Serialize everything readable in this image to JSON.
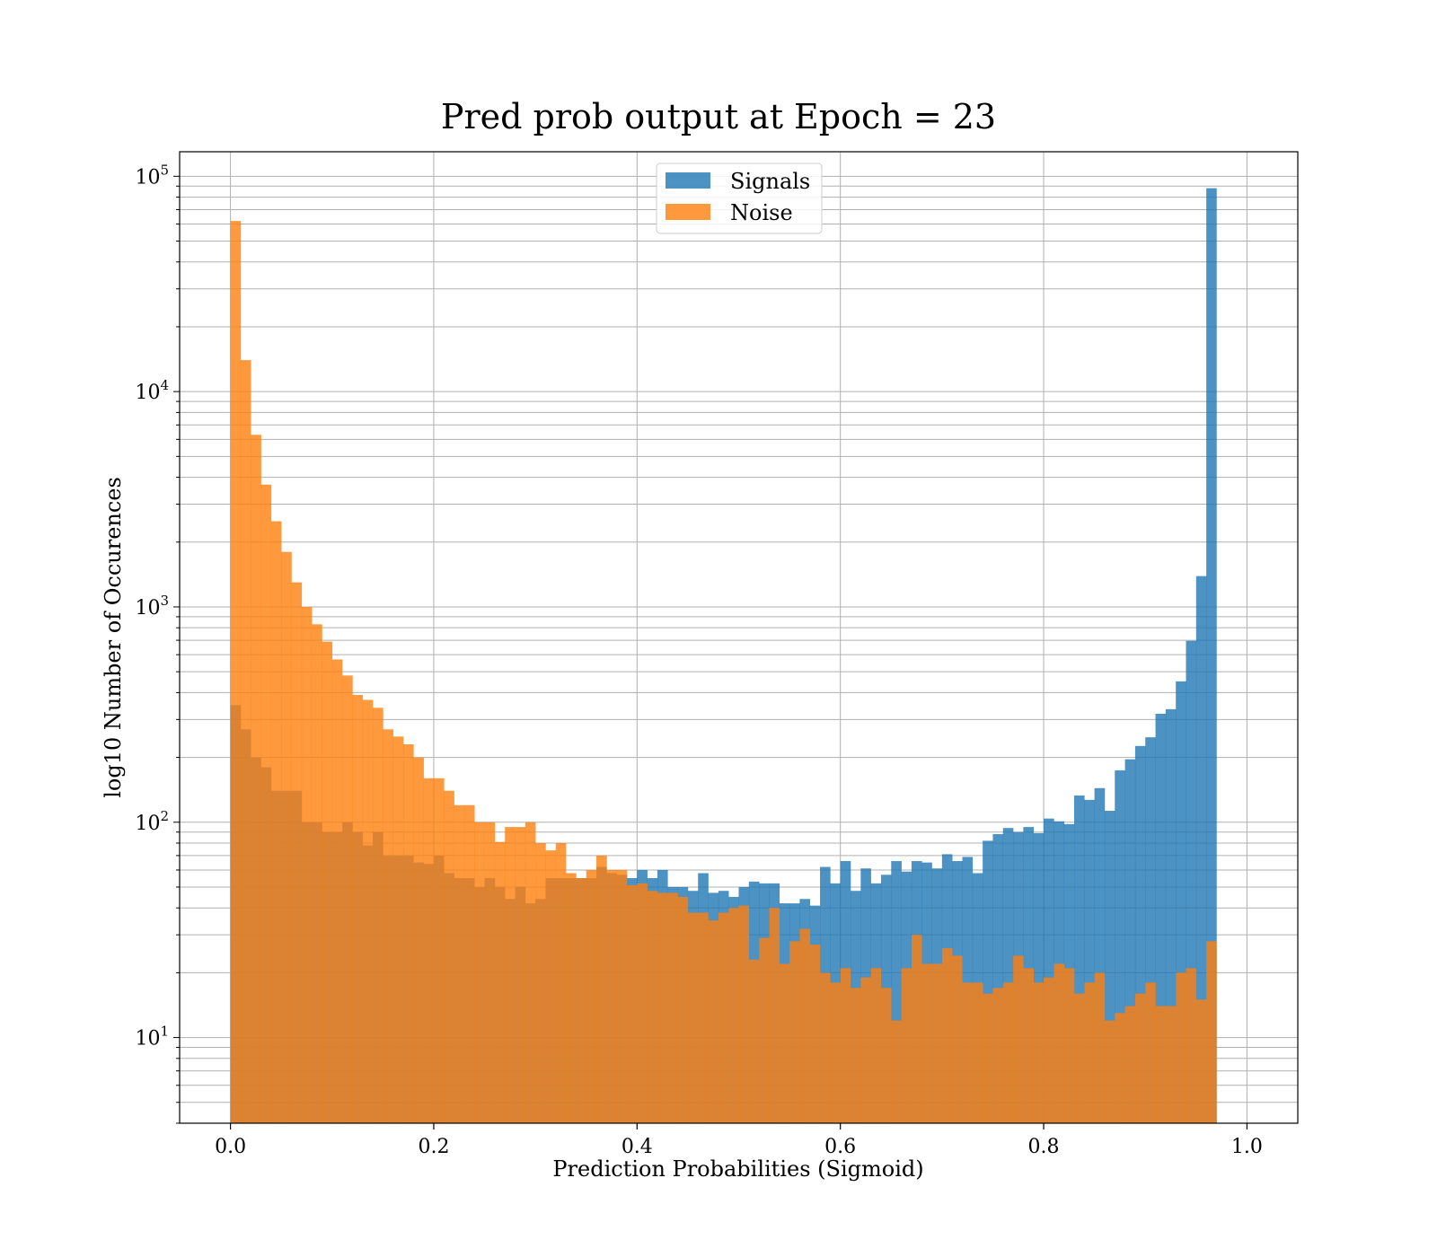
{
  "chart_data": {
    "type": "bar",
    "subtype": "overlaid-histogram",
    "title": "Pred prob output at Epoch = 23",
    "xlabel": "Prediction Probabilities (Sigmoid)",
    "ylabel": "log10 Number of Occurences",
    "xlim": [
      -0.05,
      1.05
    ],
    "ylim": [
      4,
      130000
    ],
    "yscale": "log",
    "grid": true,
    "legend_position": "top-center",
    "bins": {
      "start": 0.0,
      "end": 1.0,
      "count": 100
    },
    "xticks": [
      "0.0",
      "0.2",
      "0.4",
      "0.6",
      "0.8",
      "1.0"
    ],
    "xtick_values": [
      0.0,
      0.2,
      0.4,
      0.6,
      0.8,
      1.0
    ],
    "ytick_values": [
      10,
      100,
      1000,
      10000,
      100000
    ],
    "ytick_labels": [
      {
        "base": "10",
        "exp": "1"
      },
      {
        "base": "10",
        "exp": "2"
      },
      {
        "base": "10",
        "exp": "3"
      },
      {
        "base": "10",
        "exp": "4"
      },
      {
        "base": "10",
        "exp": "5"
      }
    ],
    "series": [
      {
        "name": "Signals",
        "color": "#1f77b4",
        "opacity": 0.8,
        "values": [
          350,
          270,
          200,
          180,
          140,
          140,
          140,
          100,
          100,
          90,
          90,
          100,
          90,
          78,
          90,
          70,
          70,
          70,
          65,
          64,
          70,
          58,
          55,
          55,
          50,
          55,
          50,
          44,
          50,
          42,
          44,
          55,
          55,
          55,
          55,
          55,
          62,
          58,
          57,
          55,
          60,
          55,
          60,
          50,
          50,
          48,
          58,
          47,
          48,
          45,
          50,
          53,
          52,
          52,
          42,
          42,
          44,
          41,
          62,
          52,
          66,
          48,
          61,
          52,
          57,
          66,
          59,
          66,
          65,
          61,
          71,
          66,
          69,
          58,
          82,
          88,
          94,
          90,
          95,
          89,
          104,
          101,
          98,
          133,
          127,
          144,
          113,
          174,
          196,
          226,
          248,
          319,
          335,
          451,
          696,
          1390,
          88000,
          0,
          0,
          0
        ]
      },
      {
        "name": "Noise",
        "color": "#ff7f0e",
        "opacity": 0.8,
        "values": [
          62000,
          14000,
          6300,
          3700,
          2500,
          1800,
          1300,
          1000,
          830,
          690,
          570,
          480,
          390,
          370,
          340,
          270,
          250,
          230,
          200,
          160,
          160,
          140,
          120,
          120,
          100,
          100,
          81,
          95,
          95,
          100,
          80,
          74,
          80,
          58,
          55,
          60,
          70,
          60,
          60,
          51,
          52,
          48,
          47,
          47,
          45,
          38,
          38,
          35,
          38,
          40,
          41,
          23,
          29,
          40,
          22,
          28,
          32,
          27,
          20,
          18,
          21,
          17,
          19,
          21,
          17,
          12,
          21,
          30,
          22,
          22,
          26,
          24,
          18,
          18,
          16,
          17,
          18,
          24,
          21,
          18,
          19,
          22,
          21,
          16,
          18,
          20,
          12,
          13,
          14,
          16,
          18,
          14,
          14,
          20,
          21,
          15,
          28,
          0,
          0,
          0
        ]
      }
    ]
  }
}
